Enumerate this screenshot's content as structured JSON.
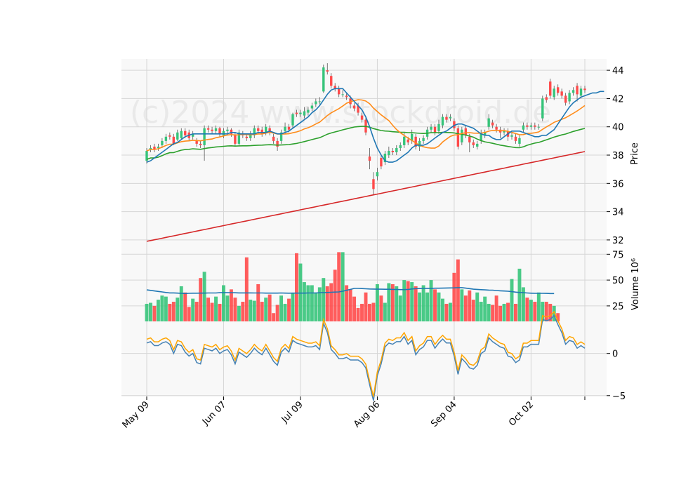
{
  "chart_data": {
    "type": "candlestick",
    "watermark": "(c)2024 www.stockdroid.de",
    "colors": {
      "up": "#36c47a",
      "down": "#ff4a4a",
      "ma_fast": "#1f77b4",
      "ma_mid": "#ff8c1a",
      "ma_slow": "#2ca02c",
      "ma_long": "#d62728",
      "vol_ma": "#1f77b4",
      "osc_a": "#4682b4",
      "osc_b": "#ffa500"
    },
    "x_tick_labels": [
      "May 09",
      "Jun 07",
      "Jul 09",
      "Aug 06",
      "Sep 04",
      "Oct 02"
    ],
    "x_tick_bars": [
      0,
      20,
      40,
      60,
      80,
      100
    ],
    "price_panel": {
      "ylabel": "Price",
      "ylim": [
        31.5,
        44.8
      ],
      "ticks": [
        "32",
        "34",
        "36",
        "38",
        "40",
        "42",
        "44"
      ],
      "tick_values": [
        32,
        34,
        36,
        38,
        40,
        42,
        44
      ]
    },
    "volume_panel": {
      "ylabel": "Volume  10⁶",
      "ylim": [
        10,
        82
      ],
      "ticks": [
        "25",
        "50",
        "75"
      ],
      "tick_values": [
        25,
        50,
        75
      ]
    },
    "osc_panel": {
      "ylim": [
        -5.1,
        3.8
      ],
      "ticks": [
        "−5",
        "0"
      ],
      "tick_values": [
        -5,
        0
      ]
    },
    "candles": [
      {
        "o": 37.6,
        "c": 38.3,
        "h": 38.5,
        "l": 37.4
      },
      {
        "o": 38.4,
        "c": 38.5,
        "h": 38.7,
        "l": 38.2
      },
      {
        "o": 38.6,
        "c": 38.4,
        "h": 38.8,
        "l": 38.2
      },
      {
        "o": 38.5,
        "c": 38.6,
        "h": 38.8,
        "l": 38.3
      },
      {
        "o": 38.7,
        "c": 39.0,
        "h": 39.2,
        "l": 38.5
      },
      {
        "o": 39.0,
        "c": 39.3,
        "h": 39.5,
        "l": 38.8
      },
      {
        "o": 39.4,
        "c": 39.3,
        "h": 39.6,
        "l": 39.1
      },
      {
        "o": 39.3,
        "c": 38.8,
        "h": 39.5,
        "l": 38.7
      },
      {
        "o": 39.1,
        "c": 39.6,
        "h": 39.8,
        "l": 39.0
      },
      {
        "o": 39.2,
        "c": 39.7,
        "h": 39.9,
        "l": 39.1
      },
      {
        "o": 39.7,
        "c": 39.4,
        "h": 39.9,
        "l": 39.2
      },
      {
        "o": 39.6,
        "c": 39.2,
        "h": 39.8,
        "l": 39.0
      },
      {
        "o": 39.3,
        "c": 39.5,
        "h": 39.7,
        "l": 39.1
      },
      {
        "o": 39.0,
        "c": 38.8,
        "h": 39.2,
        "l": 38.6
      },
      {
        "o": 38.8,
        "c": 38.7,
        "h": 39.0,
        "l": 38.5
      },
      {
        "o": 38.7,
        "c": 39.9,
        "h": 40.1,
        "l": 37.6
      },
      {
        "o": 39.9,
        "c": 39.8,
        "h": 40.1,
        "l": 39.6
      },
      {
        "o": 39.8,
        "c": 39.7,
        "h": 40.0,
        "l": 39.5
      },
      {
        "o": 39.7,
        "c": 39.9,
        "h": 40.1,
        "l": 39.5
      },
      {
        "o": 39.9,
        "c": 39.5,
        "h": 40.0,
        "l": 39.3
      },
      {
        "o": 39.4,
        "c": 39.7,
        "h": 39.9,
        "l": 39.2
      },
      {
        "o": 39.7,
        "c": 39.8,
        "h": 40.0,
        "l": 39.5
      },
      {
        "o": 39.8,
        "c": 39.5,
        "h": 39.9,
        "l": 39.3
      },
      {
        "o": 39.4,
        "c": 38.8,
        "h": 39.6,
        "l": 38.6
      },
      {
        "o": 38.8,
        "c": 39.6,
        "h": 39.8,
        "l": 38.7
      },
      {
        "o": 39.5,
        "c": 39.4,
        "h": 39.7,
        "l": 39.2
      },
      {
        "o": 39.3,
        "c": 39.2,
        "h": 39.5,
        "l": 39.0
      },
      {
        "o": 39.2,
        "c": 39.5,
        "h": 39.7,
        "l": 39.0
      },
      {
        "o": 39.4,
        "c": 39.9,
        "h": 40.1,
        "l": 39.2
      },
      {
        "o": 39.9,
        "c": 39.7,
        "h": 40.1,
        "l": 39.5
      },
      {
        "o": 39.8,
        "c": 39.5,
        "h": 40.0,
        "l": 39.3
      },
      {
        "o": 39.6,
        "c": 40.0,
        "h": 40.2,
        "l": 39.4
      },
      {
        "o": 39.9,
        "c": 39.6,
        "h": 40.1,
        "l": 39.4
      },
      {
        "o": 39.3,
        "c": 39.0,
        "h": 39.5,
        "l": 38.8
      },
      {
        "o": 39.0,
        "c": 38.6,
        "h": 39.2,
        "l": 38.3
      },
      {
        "o": 39.0,
        "c": 39.6,
        "h": 39.8,
        "l": 38.8
      },
      {
        "o": 39.7,
        "c": 40.0,
        "h": 40.3,
        "l": 39.5
      },
      {
        "o": 40.0,
        "c": 39.8,
        "h": 40.2,
        "l": 39.6
      },
      {
        "o": 40.1,
        "c": 40.9,
        "h": 41.0,
        "l": 39.9
      },
      {
        "o": 41.0,
        "c": 40.9,
        "h": 41.2,
        "l": 40.7
      },
      {
        "o": 40.9,
        "c": 41.0,
        "h": 41.2,
        "l": 40.7
      },
      {
        "o": 40.8,
        "c": 41.1,
        "h": 41.4,
        "l": 40.6
      },
      {
        "o": 41.0,
        "c": 41.2,
        "h": 41.4,
        "l": 40.8
      },
      {
        "o": 41.3,
        "c": 41.5,
        "h": 41.7,
        "l": 41.1
      },
      {
        "o": 41.6,
        "c": 41.8,
        "h": 42.0,
        "l": 41.4
      },
      {
        "o": 41.8,
        "c": 41.8,
        "h": 42.1,
        "l": 41.6
      },
      {
        "o": 42.5,
        "c": 44.2,
        "h": 44.4,
        "l": 42.4
      },
      {
        "o": 44.0,
        "c": 43.9,
        "h": 44.5,
        "l": 43.7
      },
      {
        "o": 43.6,
        "c": 42.9,
        "h": 43.8,
        "l": 42.7
      },
      {
        "o": 42.9,
        "c": 42.7,
        "h": 43.1,
        "l": 42.5
      },
      {
        "o": 42.7,
        "c": 42.3,
        "h": 42.9,
        "l": 42.1
      },
      {
        "o": 42.3,
        "c": 42.3,
        "h": 42.6,
        "l": 42.1
      },
      {
        "o": 42.2,
        "c": 42.1,
        "h": 42.4,
        "l": 41.9
      },
      {
        "o": 42.0,
        "c": 41.6,
        "h": 42.2,
        "l": 41.3
      },
      {
        "o": 41.5,
        "c": 41.3,
        "h": 41.7,
        "l": 41.1
      },
      {
        "o": 41.5,
        "c": 41.0,
        "h": 41.7,
        "l": 40.8
      },
      {
        "o": 40.8,
        "c": 40.5,
        "h": 41.0,
        "l": 40.3
      },
      {
        "o": 40.5,
        "c": 39.6,
        "h": 40.7,
        "l": 39.4
      },
      {
        "o": 37.9,
        "c": 37.6,
        "h": 38.5,
        "l": 37.0
      },
      {
        "o": 36.3,
        "c": 35.6,
        "h": 36.8,
        "l": 35.2
      },
      {
        "o": 36.5,
        "c": 36.8,
        "h": 37.1,
        "l": 36.2
      },
      {
        "o": 37.8,
        "c": 37.2,
        "h": 38.0,
        "l": 37.0
      },
      {
        "o": 37.5,
        "c": 38.1,
        "h": 38.3,
        "l": 37.3
      },
      {
        "o": 38.0,
        "c": 38.3,
        "h": 38.6,
        "l": 37.8
      },
      {
        "o": 38.3,
        "c": 38.2,
        "h": 38.5,
        "l": 38.0
      },
      {
        "o": 38.2,
        "c": 38.5,
        "h": 38.7,
        "l": 38.0
      },
      {
        "o": 38.5,
        "c": 38.7,
        "h": 38.9,
        "l": 38.3
      },
      {
        "o": 38.7,
        "c": 39.3,
        "h": 39.6,
        "l": 38.5
      },
      {
        "o": 39.1,
        "c": 38.9,
        "h": 39.3,
        "l": 38.7
      },
      {
        "o": 39.0,
        "c": 39.5,
        "h": 39.8,
        "l": 38.8
      },
      {
        "o": 39.3,
        "c": 38.6,
        "h": 39.5,
        "l": 38.4
      },
      {
        "o": 38.6,
        "c": 39.0,
        "h": 39.2,
        "l": 38.3
      },
      {
        "o": 39.0,
        "c": 39.2,
        "h": 39.4,
        "l": 38.8
      },
      {
        "o": 39.3,
        "c": 39.8,
        "h": 40.0,
        "l": 39.1
      },
      {
        "o": 39.8,
        "c": 40.0,
        "h": 40.2,
        "l": 39.6
      },
      {
        "o": 40.0,
        "c": 39.6,
        "h": 40.2,
        "l": 39.4
      },
      {
        "o": 39.7,
        "c": 40.2,
        "h": 40.5,
        "l": 39.5
      },
      {
        "o": 40.1,
        "c": 40.7,
        "h": 40.9,
        "l": 39.9
      },
      {
        "o": 40.7,
        "c": 40.5,
        "h": 40.9,
        "l": 40.3
      },
      {
        "o": 40.6,
        "c": 40.7,
        "h": 40.9,
        "l": 40.4
      },
      {
        "o": 40.4,
        "c": 39.9,
        "h": 40.6,
        "l": 39.7
      },
      {
        "o": 39.9,
        "c": 38.6,
        "h": 40.1,
        "l": 38.4
      },
      {
        "o": 38.9,
        "c": 39.8,
        "h": 40.0,
        "l": 38.7
      },
      {
        "o": 39.9,
        "c": 39.4,
        "h": 40.1,
        "l": 39.2
      },
      {
        "o": 39.3,
        "c": 38.9,
        "h": 39.5,
        "l": 38.2
      },
      {
        "o": 38.9,
        "c": 38.7,
        "h": 39.1,
        "l": 38.5
      },
      {
        "o": 38.6,
        "c": 38.8,
        "h": 39.0,
        "l": 38.4
      },
      {
        "o": 39.0,
        "c": 39.5,
        "h": 39.8,
        "l": 38.8
      },
      {
        "o": 39.4,
        "c": 39.6,
        "h": 39.8,
        "l": 39.2
      },
      {
        "o": 40.0,
        "c": 40.6,
        "h": 40.9,
        "l": 39.8
      },
      {
        "o": 40.3,
        "c": 40.1,
        "h": 40.5,
        "l": 39.9
      },
      {
        "o": 40.0,
        "c": 39.8,
        "h": 40.2,
        "l": 39.6
      },
      {
        "o": 39.8,
        "c": 39.6,
        "h": 40.0,
        "l": 39.2
      },
      {
        "o": 39.6,
        "c": 39.7,
        "h": 39.9,
        "l": 39.4
      },
      {
        "o": 39.7,
        "c": 39.3,
        "h": 39.9,
        "l": 39.0
      },
      {
        "o": 39.3,
        "c": 39.4,
        "h": 39.6,
        "l": 39.1
      },
      {
        "o": 39.3,
        "c": 39.0,
        "h": 39.5,
        "l": 38.8
      },
      {
        "o": 38.8,
        "c": 39.2,
        "h": 39.4,
        "l": 38.6
      },
      {
        "o": 39.8,
        "c": 40.1,
        "h": 40.3,
        "l": 39.6
      },
      {
        "o": 40.1,
        "c": 40.0,
        "h": 40.3,
        "l": 39.8
      },
      {
        "o": 40.0,
        "c": 40.1,
        "h": 40.3,
        "l": 39.8
      },
      {
        "o": 40.1,
        "c": 40.0,
        "h": 40.3,
        "l": 39.8
      },
      {
        "o": 40.0,
        "c": 40.0,
        "h": 40.2,
        "l": 39.8
      },
      {
        "o": 40.6,
        "c": 42.0,
        "h": 42.2,
        "l": 40.4
      },
      {
        "o": 42.1,
        "c": 41.9,
        "h": 42.3,
        "l": 41.7
      },
      {
        "o": 43.2,
        "c": 42.2,
        "h": 43.4,
        "l": 42.0
      },
      {
        "o": 42.1,
        "c": 42.7,
        "h": 42.9,
        "l": 41.9
      },
      {
        "o": 42.8,
        "c": 42.4,
        "h": 43.0,
        "l": 42.2
      },
      {
        "o": 42.5,
        "c": 42.2,
        "h": 42.7,
        "l": 42.0
      },
      {
        "o": 42.2,
        "c": 41.7,
        "h": 42.4,
        "l": 41.5
      },
      {
        "o": 41.8,
        "c": 42.4,
        "h": 42.6,
        "l": 41.6
      },
      {
        "o": 42.4,
        "c": 42.6,
        "h": 42.8,
        "l": 42.2
      },
      {
        "o": 42.9,
        "c": 42.3,
        "h": 43.1,
        "l": 41.8
      },
      {
        "o": 42.2,
        "c": 42.7,
        "h": 42.9,
        "l": 42.0
      },
      {
        "o": 42.7,
        "c": 42.6,
        "h": 42.9,
        "l": 42.4
      }
    ],
    "volume": [
      27,
      28,
      25,
      31,
      35,
      34,
      27,
      29,
      33,
      44,
      38,
      24,
      32,
      29,
      52,
      58,
      33,
      28,
      34,
      27,
      45,
      35,
      41,
      33,
      25,
      29,
      72,
      31,
      30,
      46,
      29,
      33,
      36,
      18,
      26,
      35,
      27,
      32,
      37,
      76,
      66,
      48,
      45,
      45,
      38,
      43,
      52,
      44,
      47,
      60,
      77,
      77,
      45,
      41,
      34,
      23,
      27,
      38,
      27,
      28,
      46,
      35,
      28,
      47,
      46,
      44,
      35,
      50,
      49,
      48,
      44,
      38,
      45,
      38,
      50,
      41,
      38,
      32,
      27,
      28,
      57,
      70,
      41,
      35,
      40,
      31,
      38,
      29,
      34,
      27,
      26,
      35,
      25,
      27,
      28,
      51,
      27,
      61,
      43,
      33,
      31,
      29,
      38,
      29,
      29,
      27,
      25,
      18
    ],
    "volume_ma": [
      40.5,
      40,
      39.5,
      39,
      38.5,
      38,
      37.6,
      37.6,
      37.4,
      37.2,
      37,
      37.2,
      37.3,
      37.3,
      37.4,
      37.4,
      37.5,
      37.5,
      37.5,
      37.8,
      37.8,
      37.8,
      37.7,
      37.7,
      37.6,
      37.6,
      37.6,
      37.6,
      37.5,
      37.5,
      37.5,
      37.4,
      37.4,
      37.4,
      37.4,
      37.5,
      37.4,
      37.3,
      37.4,
      37.4,
      37.4,
      37.4,
      37.5,
      37.5,
      37.5,
      37.7,
      37.9,
      38,
      38.2,
      38.4,
      38.5,
      39.2,
      40.1,
      41,
      41.9,
      41.9,
      41.8,
      41.6,
      41.4,
      41.3,
      41.2,
      41.2,
      41.1,
      41.1,
      41,
      40.9,
      40.8,
      40.8,
      41,
      41.4,
      41.7,
      41.8,
      41.9,
      42,
      42,
      42.1,
      42.1,
      42.2,
      42.3,
      42.4,
      42.5,
      42.7,
      42.7,
      42.2,
      41.7,
      41.2,
      41,
      40.7,
      40.5,
      40.3,
      40.2,
      39.9,
      39.6,
      39.4,
      39.2,
      38.8,
      38.3,
      38,
      37.8,
      37.5,
      37.3,
      37.2,
      37.2,
      37.2,
      37.1,
      37,
      37
    ],
    "ma_fast": [
      37.5,
      37.6,
      37.8,
      38.0,
      38.2,
      38.4,
      38.6,
      38.8,
      38.9,
      39.1,
      39.3,
      39.4,
      39.5,
      39.5,
      39.5,
      39.5,
      39.5,
      39.5,
      39.5,
      39.5,
      39.5,
      39.5,
      39.6,
      39.6,
      39.5,
      39.5,
      39.5,
      39.5,
      39.5,
      39.6,
      39.6,
      39.6,
      39.7,
      39.6,
      39.5,
      39.5,
      39.6,
      39.7,
      39.9,
      40.1,
      40.3,
      40.5,
      40.7,
      41.0,
      41.2,
      41.5,
      41.9,
      42.3,
      42.6,
      42.7,
      42.7,
      42.7,
      42.4,
      42.1,
      41.8,
      41.5,
      41.2,
      40.7,
      40.0,
      39.2,
      38.5,
      38.0,
      37.6,
      37.5,
      37.5,
      37.6,
      37.8,
      38.0,
      38.2,
      38.5,
      38.7,
      38.7,
      38.7,
      38.8,
      39.0,
      39.2,
      39.4,
      39.6,
      39.7,
      39.9,
      40.1,
      40.2,
      40.2,
      40.1,
      40.0,
      39.9,
      39.7,
      39.5,
      39.4,
      39.4,
      39.2,
      39.1,
      39.1,
      39.3,
      39.5,
      39.7,
      39.7,
      39.7,
      39.6,
      39.5,
      39.4,
      39.3,
      39.3,
      39.4,
      39.4,
      39.6,
      39.8,
      40.2,
      40.6,
      41.0,
      41.4,
      41.7,
      41.9,
      42.1,
      42.2,
      42.3,
      42.4,
      42.4,
      42.5,
      42.5
    ]
  }
}
